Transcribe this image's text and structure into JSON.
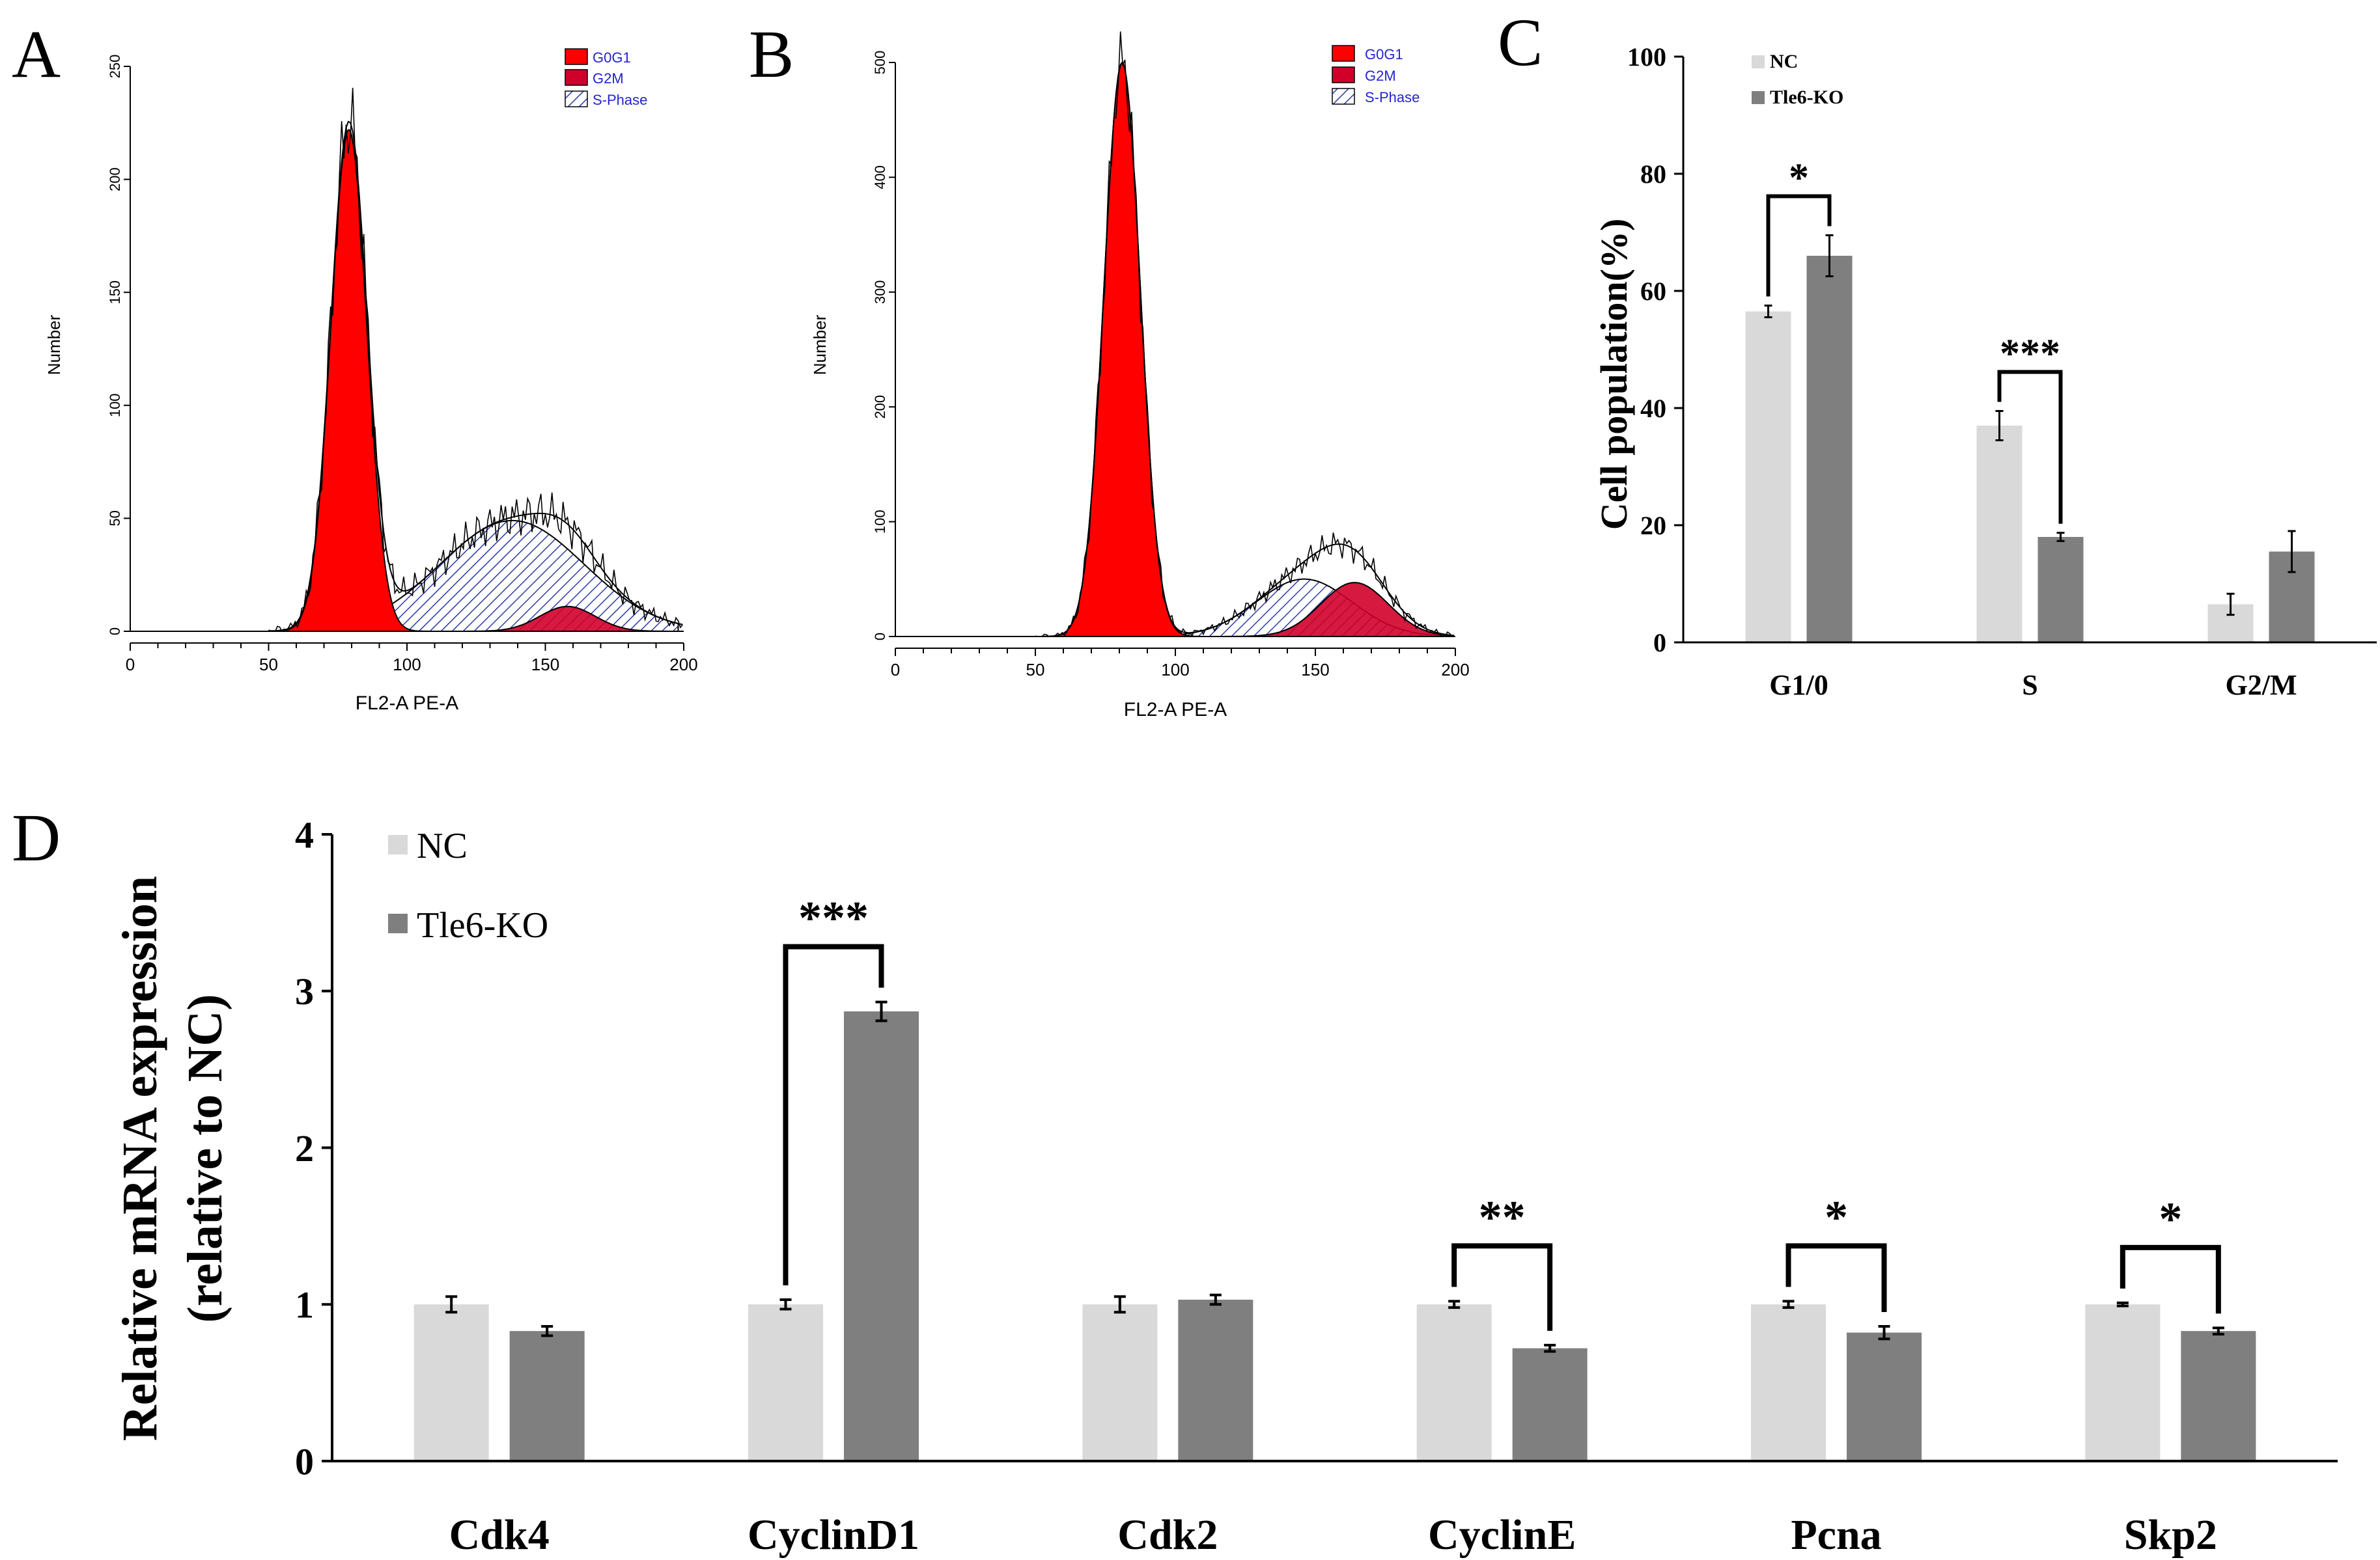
{
  "panel_labels": {
    "a": "A",
    "b": "B",
    "c": "C",
    "d": "D"
  },
  "colors": {
    "g0g1": "#ff0000",
    "g2m": "#d0002a",
    "s_phase": "#2b3aa8",
    "nc": "#d9d9d9",
    "ko": "#7f7f7f",
    "legend_text": "#2424d0"
  },
  "histogram_legend": {
    "g0g1": "G0G1",
    "g2m": "G2M",
    "s_phase": "S-Phase"
  },
  "chart_data": [
    {
      "type": "area",
      "panel": "A",
      "title": "",
      "xlabel": "FL2-A PE-A",
      "ylabel": "Number",
      "xlim": [
        0,
        200
      ],
      "ylim": [
        0,
        250
      ],
      "xticks": [
        "0",
        "50",
        "100",
        "150",
        "200"
      ],
      "yticks": [
        "0",
        "50",
        "100",
        "150",
        "200",
        "250"
      ],
      "series": [
        {
          "name": "G0G1",
          "mean": 79,
          "sd": 6.5,
          "peak": 222
        },
        {
          "name": "S-Phase",
          "mean": 138,
          "sd": 26,
          "peak": 49
        },
        {
          "name": "G2M",
          "mean": 158,
          "sd": 10,
          "peak": 11
        }
      ]
    },
    {
      "type": "area",
      "panel": "B",
      "title": "",
      "xlabel": "FL2-A PE-A",
      "ylabel": "Number",
      "xlim": [
        0,
        200
      ],
      "ylim": [
        0,
        500
      ],
      "xticks": [
        "0",
        "50",
        "100",
        "150",
        "200"
      ],
      "yticks": [
        "0",
        "100",
        "200",
        "300",
        "400",
        "500"
      ],
      "series": [
        {
          "name": "G0G1",
          "mean": 81,
          "sd": 6.5,
          "peak": 500
        },
        {
          "name": "S-Phase",
          "mean": 146,
          "sd": 17,
          "peak": 50
        },
        {
          "name": "G2M",
          "mean": 164,
          "sd": 12,
          "peak": 47
        }
      ]
    },
    {
      "type": "bar",
      "panel": "C",
      "title": "",
      "xlabel": "",
      "ylabel": "Cell population(%)",
      "ylim": [
        0,
        100
      ],
      "yticks": [
        "0",
        "20",
        "40",
        "60",
        "80",
        "100"
      ],
      "categories": [
        "G1/0",
        "S",
        "G2/M"
      ],
      "series": [
        {
          "name": "NC",
          "values": [
            56.5,
            37,
            6.5
          ],
          "errors": [
            1.0,
            2.5,
            1.8
          ]
        },
        {
          "name": "Tle6-KO",
          "values": [
            66,
            18,
            15.5
          ],
          "errors": [
            3.5,
            0.7,
            3.5
          ]
        }
      ],
      "significance": [
        "*",
        "***",
        ""
      ],
      "legend": "top-left"
    },
    {
      "type": "bar",
      "panel": "D",
      "title": "",
      "xlabel": "",
      "ylabel_line1": "Relative mRNA expression",
      "ylabel_line2": "(relative to NC)",
      "ylim": [
        0,
        4
      ],
      "yticks": [
        "0",
        "1",
        "2",
        "3",
        "4"
      ],
      "categories": [
        "Cdk4",
        "CyclinD1",
        "Cdk2",
        "CyclinE",
        "Pcna",
        "Skp2"
      ],
      "series": [
        {
          "name": "NC",
          "values": [
            1.0,
            1.0,
            1.0,
            1.0,
            1.0,
            1.0
          ],
          "errors": [
            0.05,
            0.03,
            0.05,
            0.02,
            0.02,
            0.01
          ]
        },
        {
          "name": "Tle6-KO",
          "values": [
            0.83,
            2.87,
            1.03,
            0.72,
            0.82,
            0.83
          ],
          "errors": [
            0.03,
            0.06,
            0.03,
            0.02,
            0.04,
            0.02
          ]
        }
      ],
      "significance": [
        "",
        "***",
        "",
        "**",
        "*",
        "*"
      ],
      "legend": "top-left"
    }
  ]
}
